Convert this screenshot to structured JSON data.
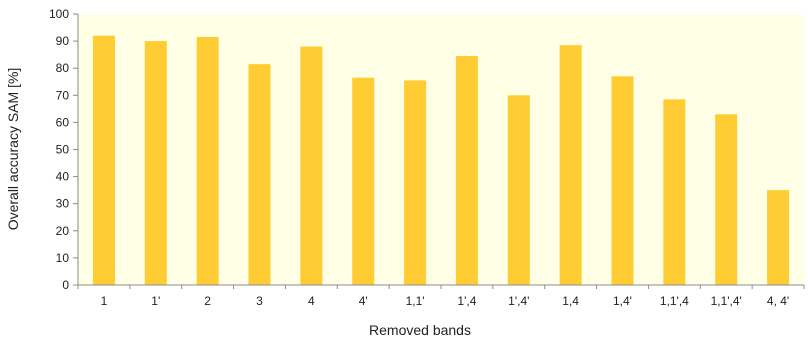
{
  "chart_data": {
    "type": "bar",
    "title": "",
    "xlabel": "Removed bands",
    "ylabel": "Overall accuracy SAM [%]",
    "ylim": [
      0,
      100
    ],
    "yticks": [
      0,
      10,
      20,
      30,
      40,
      50,
      60,
      70,
      80,
      90,
      100
    ],
    "grid": false,
    "legend": "none",
    "categories": [
      "1",
      "1'",
      "2",
      "3",
      "4",
      "4'",
      "1,1'",
      "1',4",
      "1',4'",
      "1,4",
      "1,4'",
      "1,1',4",
      "1,1',4'",
      "4, 4'"
    ],
    "values": [
      92,
      90,
      91.5,
      81.5,
      88,
      76.5,
      75.5,
      84.5,
      70,
      88.5,
      77,
      68.5,
      63,
      35
    ],
    "colors": {
      "bar": "#FFCC33",
      "plot_background": "#FFFFE5",
      "axis": "#8C8C8C",
      "text": "#222222"
    }
  }
}
